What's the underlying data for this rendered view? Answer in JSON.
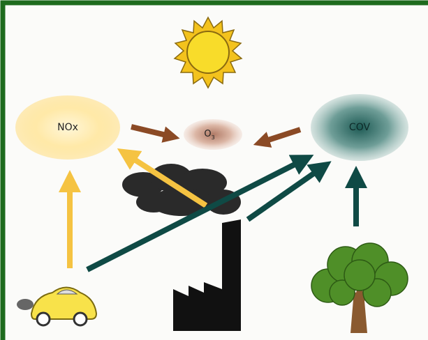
{
  "nodes": [
    {
      "label": "NOx"
    },
    {
      "label": "O",
      "subscript": "3"
    },
    {
      "label": "COV"
    }
  ]
}
